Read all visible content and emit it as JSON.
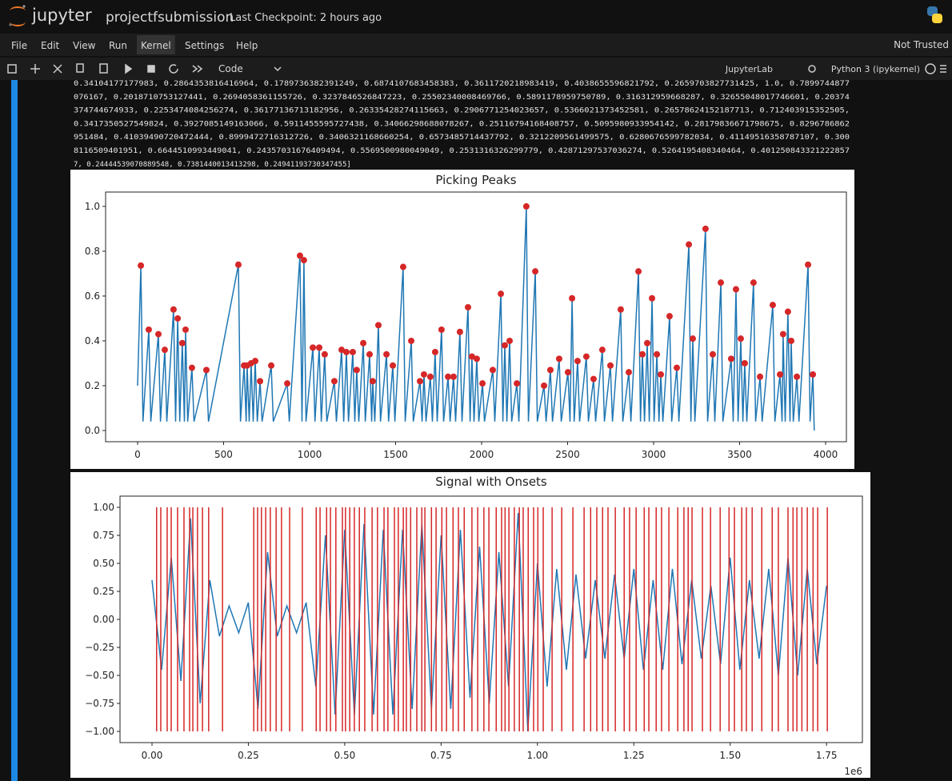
{
  "header": {
    "logo": "jupyter",
    "notebook": "projectfsubmission",
    "checkpoint": "Last Checkpoint: 2 hours ago"
  },
  "menu": {
    "items": [
      "File",
      "Edit",
      "View",
      "Run",
      "Kernel",
      "Settings",
      "Help"
    ],
    "trust": "Not Trusted"
  },
  "toolbar": {
    "cell_type": "Code",
    "lab": "JupyterLab",
    "kernel": "Python 3 (ipykernel)"
  },
  "output": {
    "lines": [
      "0.34104177177983, 0.2864353816416964, 0.1789736382391249, 0.6874107683458383, 0.3611720218983419, 0.4038655596821792, 0.2659703827731425, 1.0, 0.7899744877",
      "076167, 0.2018710753127441, 0.2694058361155726, 0.3237846526847223, 0.25502340008469766, 0.5891178959750789, 0.316312959668287, 0.32655048017746601, 0.20374",
      "374744674933, 0.2253474084256274, 0.36177136713182956, 0.26335428274115663, 0.2906771254023657, 0.5366021373452581, 0.26578624152187713, 0.712403915352505,",
      "0.3417350527549824, 0.3927085149163066, 0.5911455595727438, 0.34066298688078267, 0.25116794168408757, 0.5095980933954142, 0.28179836671798675, 0.8296786862",
      "951484, 0.41039490720472444, 0.8999472716312726, 0.3406321168660254, 0.6573485714437792, 0.3212209561499575, 0.6280676599782034, 0.41149516358787107, 0.300",
      "8116509401951, 0.6644510993449041, 0.24357031676409494, 0.5569500980049049, 0.2531316326299779, 0.42871297537036274, 0.5264195408340464, 0.401250843321222857",
      "7, 0.24444539070889548, 0.7381440013413298, 0.24941193730347455]"
    ]
  },
  "chart_data": [
    {
      "type": "line",
      "title": "Picking Peaks",
      "xlim": [
        -186,
        4121
      ],
      "ylim": [
        -0.05,
        1.064
      ],
      "xticks": [
        0,
        500,
        1000,
        1500,
        2000,
        2500,
        3000,
        3500,
        4000
      ],
      "yticks": [
        {
          "value": 0,
          "label": "0.0"
        },
        0.2,
        0.4,
        0.6,
        0.8,
        {
          "value": 1,
          "label": "1.0"
        }
      ],
      "series": [
        {
          "type": "line",
          "color": "#1f77b4",
          "x": [
            0,
            19,
            31,
            65,
            77,
            121,
            133,
            158,
            170,
            209,
            221,
            233,
            245,
            260,
            272,
            279,
            291,
            316,
            328,
            400,
            412,
            586,
            598,
            619,
            631,
            637,
            649,
            660,
            672,
            684,
            696,
            712,
            724,
            777,
            789,
            870,
            882,
            944,
            956,
            967,
            979,
            1019,
            1031,
            1056,
            1068,
            1088,
            1100,
            1144,
            1156,
            1186,
            1198,
            1214,
            1226,
            1251,
            1263,
            1274,
            1286,
            1312,
            1324,
            1349,
            1361,
            1367,
            1379,
            1400,
            1412,
            1447,
            1459,
            1484,
            1496,
            1544,
            1556,
            1591,
            1603,
            1642,
            1654,
            1665,
            1677,
            1702,
            1714,
            1730,
            1742,
            1767,
            1779,
            1805,
            1817,
            1837,
            1849,
            1874,
            1886,
            1921,
            1933,
            1944,
            1956,
            1972,
            1984,
            2005,
            2017,
            2065,
            2077,
            2112,
            2124,
            2135,
            2147,
            2163,
            2175,
            2205,
            2217,
            2260,
            2272,
            2312,
            2324,
            2363,
            2375,
            2400,
            2412,
            2451,
            2463,
            2502,
            2514,
            2526,
            2538,
            2558,
            2570,
            2609,
            2621,
            2651,
            2663,
            2702,
            2714,
            2749,
            2761,
            2809,
            2821,
            2856,
            2868,
            2912,
            2924,
            2935,
            2947,
            2963,
            2975,
            2991,
            3003,
            3019,
            3031,
            3042,
            3054,
            3093,
            3105,
            3135,
            3147,
            3205,
            3217,
            3228,
            3240,
            3302,
            3314,
            3344,
            3356,
            3391,
            3403,
            3451,
            3463,
            3479,
            3491,
            3507,
            3519,
            3530,
            3542,
            3581,
            3593,
            3619,
            3631,
            3693,
            3705,
            3735,
            3747,
            3753,
            3765,
            3781,
            3793,
            3800,
            3812,
            3833,
            3845,
            3898,
            3910,
            3926,
            3934
          ],
          "values": [
            0.2,
            0.736,
            0.04,
            0.45,
            0.04,
            0.43,
            0.04,
            0.36,
            0.04,
            0.54,
            0.04,
            0.5,
            0.04,
            0.39,
            0.04,
            0.45,
            0.04,
            0.28,
            0.04,
            0.27,
            0.04,
            0.74,
            0.04,
            0.29,
            0.04,
            0.29,
            0.04,
            0.3,
            0.04,
            0.31,
            0.04,
            0.22,
            0.04,
            0.29,
            0.04,
            0.21,
            0.04,
            0.78,
            0.04,
            0.76,
            0.04,
            0.37,
            0.04,
            0.37,
            0.04,
            0.34,
            0.04,
            0.22,
            0.04,
            0.36,
            0.04,
            0.35,
            0.04,
            0.35,
            0.04,
            0.27,
            0.04,
            0.39,
            0.04,
            0.34,
            0.04,
            0.22,
            0.04,
            0.47,
            0.04,
            0.34,
            0.04,
            0.29,
            0.04,
            0.73,
            0.04,
            0.4,
            0.04,
            0.22,
            0.04,
            0.25,
            0.04,
            0.24,
            0.04,
            0.35,
            0.04,
            0.45,
            0.04,
            0.24,
            0.04,
            0.24,
            0.04,
            0.44,
            0.04,
            0.55,
            0.04,
            0.33,
            0.04,
            0.32,
            0.04,
            0.21,
            0.04,
            0.27,
            0.04,
            0.61,
            0.04,
            0.38,
            0.04,
            0.4,
            0.04,
            0.21,
            0.04,
            1.0,
            0.04,
            0.71,
            0.04,
            0.2,
            0.04,
            0.27,
            0.04,
            0.32,
            0.04,
            0.26,
            0.04,
            0.59,
            0.04,
            0.31,
            0.04,
            0.33,
            0.04,
            0.23,
            0.04,
            0.36,
            0.04,
            0.29,
            0.04,
            0.54,
            0.04,
            0.26,
            0.04,
            0.71,
            0.04,
            0.34,
            0.04,
            0.39,
            0.04,
            0.59,
            0.04,
            0.34,
            0.04,
            0.25,
            0.04,
            0.51,
            0.04,
            0.28,
            0.04,
            0.83,
            0.04,
            0.41,
            0.04,
            0.9,
            0.04,
            0.34,
            0.04,
            0.66,
            0.04,
            0.32,
            0.04,
            0.63,
            0.04,
            0.41,
            0.04,
            0.3,
            0.04,
            0.66,
            0.04,
            0.24,
            0.04,
            0.56,
            0.04,
            0.25,
            0.04,
            0.43,
            0.04,
            0.53,
            0.04,
            0.4,
            0.04,
            0.24,
            0.04,
            0.74,
            0.04,
            0.25,
            0.0
          ]
        },
        {
          "type": "scatter",
          "color": "#d62728",
          "x": [
            19,
            65,
            121,
            158,
            209,
            233,
            260,
            279,
            316,
            400,
            586,
            619,
            637,
            660,
            684,
            712,
            777,
            870,
            944,
            967,
            1019,
            1056,
            1088,
            1144,
            1186,
            1214,
            1251,
            1274,
            1312,
            1349,
            1367,
            1400,
            1447,
            1484,
            1544,
            1591,
            1642,
            1665,
            1702,
            1730,
            1767,
            1805,
            1837,
            1874,
            1921,
            1944,
            1972,
            2005,
            2065,
            2112,
            2135,
            2163,
            2205,
            2260,
            2312,
            2363,
            2400,
            2451,
            2502,
            2526,
            2558,
            2609,
            2651,
            2702,
            2749,
            2809,
            2856,
            2912,
            2935,
            2963,
            2991,
            3019,
            3042,
            3093,
            3135,
            3205,
            3228,
            3302,
            3344,
            3391,
            3451,
            3479,
            3507,
            3530,
            3581,
            3619,
            3693,
            3735,
            3753,
            3781,
            3800,
            3833,
            3898,
            3926
          ],
          "values": [
            0.736,
            0.45,
            0.43,
            0.36,
            0.54,
            0.5,
            0.39,
            0.45,
            0.28,
            0.27,
            0.74,
            0.29,
            0.29,
            0.3,
            0.31,
            0.22,
            0.29,
            0.21,
            0.78,
            0.76,
            0.37,
            0.37,
            0.34,
            0.22,
            0.36,
            0.35,
            0.35,
            0.27,
            0.39,
            0.34,
            0.22,
            0.47,
            0.34,
            0.29,
            0.73,
            0.4,
            0.22,
            0.25,
            0.24,
            0.35,
            0.45,
            0.24,
            0.24,
            0.44,
            0.55,
            0.33,
            0.32,
            0.21,
            0.27,
            0.61,
            0.38,
            0.4,
            0.21,
            1.0,
            0.71,
            0.2,
            0.27,
            0.32,
            0.26,
            0.59,
            0.31,
            0.33,
            0.23,
            0.36,
            0.29,
            0.54,
            0.26,
            0.71,
            0.34,
            0.39,
            0.59,
            0.34,
            0.25,
            0.51,
            0.28,
            0.83,
            0.41,
            0.9,
            0.34,
            0.66,
            0.32,
            0.63,
            0.41,
            0.3,
            0.66,
            0.24,
            0.56,
            0.25,
            0.43,
            0.53,
            0.4,
            0.24,
            0.74,
            0.25
          ]
        }
      ]
    },
    {
      "type": "line",
      "title": "Signal with Onsets",
      "x_offset": "1e6",
      "xlim": [
        -83000,
        1843000
      ],
      "ylim": [
        -1.1,
        1.1
      ],
      "xticks": [
        {
          "value": 0,
          "label": "0.00"
        },
        {
          "value": 250000,
          "label": "0.25"
        },
        {
          "value": 500000,
          "label": "0.50"
        },
        {
          "value": 750000,
          "label": "0.75"
        },
        {
          "value": 1000000,
          "label": "1.00"
        },
        {
          "value": 1250000,
          "label": "1.25"
        },
        {
          "value": 1500000,
          "label": "1.50"
        },
        {
          "value": 1750000,
          "label": "1.75"
        }
      ],
      "yticks": [
        {
          "value": -1,
          "label": "−1.00"
        },
        {
          "value": -0.75,
          "label": "−0.75"
        },
        {
          "value": -0.5,
          "label": "−0.50"
        },
        {
          "value": -0.25,
          "label": "−0.25"
        },
        {
          "value": 0,
          "label": "0.00"
        },
        {
          "value": 0.25,
          "label": "0.25"
        },
        {
          "value": 0.5,
          "label": "0.50"
        },
        {
          "value": 0.75,
          "label": "0.75"
        },
        {
          "value": 1,
          "label": "1.00"
        }
      ],
      "series": [
        {
          "type": "line",
          "color": "#1f77b4",
          "x": [
            0,
            25000,
            50000,
            75000,
            100000,
            125000,
            150000,
            175000,
            200000,
            225000,
            250000,
            275000,
            300000,
            325000,
            350000,
            375000,
            400000,
            425000,
            450000,
            475000,
            500000,
            525000,
            550000,
            575000,
            600000,
            625000,
            650000,
            675000,
            700000,
            725000,
            750000,
            775000,
            800000,
            825000,
            850000,
            875000,
            900000,
            925000,
            950000,
            975000,
            1000000,
            1025000,
            1050000,
            1075000,
            1100000,
            1125000,
            1150000,
            1175000,
            1200000,
            1225000,
            1250000,
            1275000,
            1300000,
            1325000,
            1350000,
            1375000,
            1400000,
            1425000,
            1450000,
            1475000,
            1500000,
            1525000,
            1550000,
            1575000,
            1600000,
            1625000,
            1650000,
            1675000,
            1700000,
            1725000,
            1750000
          ],
          "values": [
            0.35,
            -0.45,
            0.55,
            -0.55,
            0.9,
            -0.75,
            0.35,
            -0.15,
            0.12,
            -0.12,
            0.15,
            -0.8,
            0.6,
            -0.15,
            0.12,
            -0.12,
            0.15,
            -0.6,
            0.75,
            -0.85,
            0.8,
            -0.85,
            0.85,
            -0.85,
            0.8,
            -0.85,
            0.8,
            -0.8,
            0.85,
            -0.8,
            0.75,
            -0.8,
            0.8,
            -0.7,
            0.65,
            -0.75,
            0.6,
            -0.6,
            0.95,
            -1.0,
            0.5,
            -0.6,
            0.45,
            -0.45,
            0.4,
            -0.35,
            0.35,
            -0.35,
            0.4,
            -0.35,
            0.45,
            -0.45,
            0.35,
            -0.45,
            0.45,
            -0.4,
            0.35,
            -0.35,
            0.3,
            -0.4,
            0.55,
            -0.45,
            0.35,
            -0.35,
            0.45,
            -0.5,
            0.55,
            -0.5,
            0.45,
            -0.4,
            0.3
          ]
        }
      ],
      "vlines": {
        "color": "#d62728",
        "ymin": -1,
        "ymax": 1,
        "x": [
          12000,
          22800,
          39400,
          49800,
          66400,
          83000,
          97600,
          106000,
          118000,
          131000,
          147000,
          183000,
          264000,
          274000,
          284000,
          295000,
          307000,
          322000,
          336000,
          357000,
          390000,
          426000,
          436000,
          453000,
          463000,
          477000,
          494000,
          502000,
          513000,
          525000,
          538000,
          552000,
          571000,
          585000,
          602000,
          612000,
          629000,
          639000,
          652000,
          660000,
          671000,
          687000,
          700000,
          708000,
          725000,
          737000,
          752000,
          764000,
          781000,
          795000,
          810000,
          830000,
          845000,
          861000,
          874000,
          893000,
          907000,
          916000,
          926000,
          940000,
          953000,
          963000,
          976000,
          990000,
          1001000,
          1015000,
          1038000,
          1063000,
          1092000,
          1121000,
          1138000,
          1154000,
          1169000,
          1183000,
          1202000,
          1225000,
          1239000,
          1256000,
          1277000,
          1289000,
          1308000,
          1322000,
          1341000,
          1364000,
          1380000,
          1391000,
          1401000,
          1428000,
          1449000,
          1474000,
          1497000,
          1511000,
          1530000,
          1542000,
          1557000,
          1582000,
          1609000,
          1625000,
          1650000,
          1663000,
          1673000,
          1686000,
          1700000,
          1715000,
          1727000,
          1752000
        ]
      }
    }
  ]
}
